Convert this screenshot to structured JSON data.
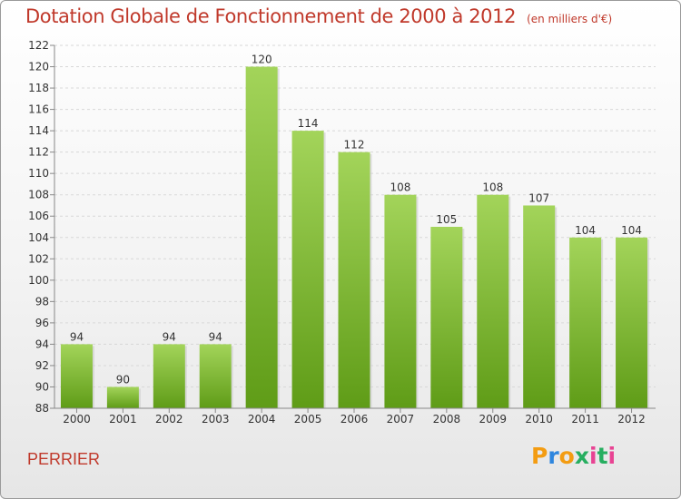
{
  "title": "Dotation Globale de Fonctionnement de 2000 à 2012",
  "subtitle": "(en milliers d'€)",
  "place": "PERRIER",
  "logo": "Proxiti",
  "colors": {
    "bar_light": "#9ed04d",
    "bar_dark": "#63a01a",
    "title": "#c0392b"
  },
  "chart_data": {
    "type": "bar",
    "categories": [
      "2000",
      "2001",
      "2002",
      "2003",
      "2004",
      "2005",
      "2006",
      "2007",
      "2008",
      "2009",
      "2010",
      "2011",
      "2012"
    ],
    "values": [
      94,
      90,
      94,
      94,
      120,
      114,
      112,
      108,
      105,
      108,
      107,
      104,
      104
    ],
    "ylim": [
      88,
      122
    ],
    "yticks": [
      88,
      90,
      92,
      94,
      96,
      98,
      100,
      102,
      104,
      106,
      108,
      110,
      112,
      114,
      116,
      118,
      120,
      122
    ],
    "grid": true,
    "data_labels": true
  }
}
